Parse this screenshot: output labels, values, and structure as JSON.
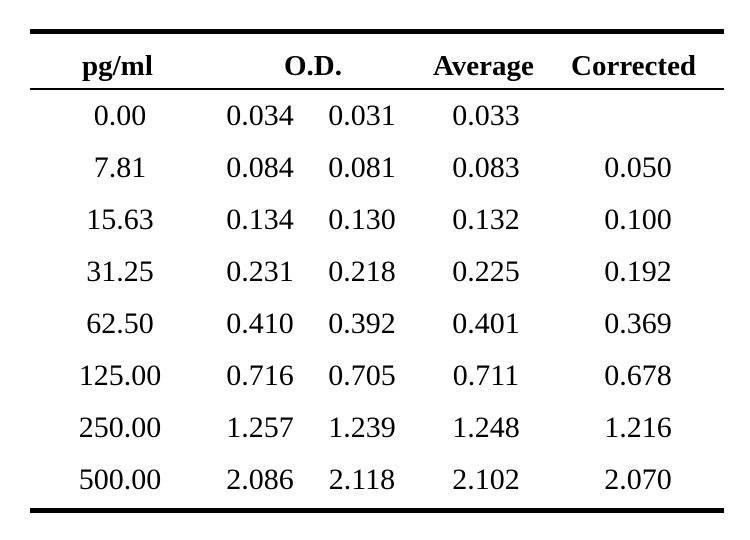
{
  "table": {
    "headers": {
      "concentration": "pg/ml",
      "od": "O.D.",
      "average": "Average",
      "corrected": "Corrected"
    },
    "rows": [
      {
        "concentration": "0.00",
        "od1": "0.034",
        "od2": "0.031",
        "average": "0.033",
        "corrected": ""
      },
      {
        "concentration": "7.81",
        "od1": "0.084",
        "od2": "0.081",
        "average": "0.083",
        "corrected": "0.050"
      },
      {
        "concentration": "15.63",
        "od1": "0.134",
        "od2": "0.130",
        "average": "0.132",
        "corrected": "0.100"
      },
      {
        "concentration": "31.25",
        "od1": "0.231",
        "od2": "0.218",
        "average": "0.225",
        "corrected": "0.192"
      },
      {
        "concentration": "62.50",
        "od1": "0.410",
        "od2": "0.392",
        "average": "0.401",
        "corrected": "0.369"
      },
      {
        "concentration": "125.00",
        "od1": "0.716",
        "od2": "0.705",
        "average": "0.711",
        "corrected": "0.678"
      },
      {
        "concentration": "250.00",
        "od1": "1.257",
        "od2": "1.239",
        "average": "1.248",
        "corrected": "1.216"
      },
      {
        "concentration": "500.00",
        "od1": "2.086",
        "od2": "2.118",
        "average": "2.102",
        "corrected": "2.070"
      }
    ]
  }
}
